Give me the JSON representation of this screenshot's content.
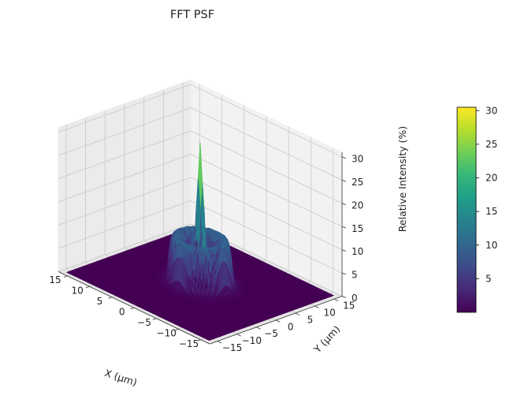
{
  "chart_data": {
    "type": "surface",
    "title": "FFT PSF",
    "xlabel": "X (µm)",
    "ylabel": "Y (µm)",
    "zlabel": "Relative Intensity (%)",
    "xlim": [
      -17,
      17
    ],
    "ylim": [
      -17,
      17
    ],
    "zlim": [
      0,
      31
    ],
    "x_ticks": [
      -15,
      -10,
      -5,
      0,
      5,
      10,
      15
    ],
    "y_ticks": [
      -15,
      -10,
      -5,
      0,
      5,
      10,
      15
    ],
    "z_ticks": [
      0,
      5,
      10,
      15,
      20,
      25,
      30
    ],
    "colorbar": {
      "min": 0,
      "max": 30.5,
      "ticks": [
        5,
        10,
        15,
        20,
        25,
        30
      ],
      "colormap": "viridis"
    },
    "surface": {
      "peak_value": 30.5,
      "peak_x": 0,
      "peak_y": 0,
      "central_lobe_radius": 0.6,
      "ring_radius": 4.2,
      "ring_width": 1.3,
      "ring_value": 10,
      "outer_ring_radius": 6.5,
      "outer_ring_value": 0.6
    },
    "grid": true
  }
}
